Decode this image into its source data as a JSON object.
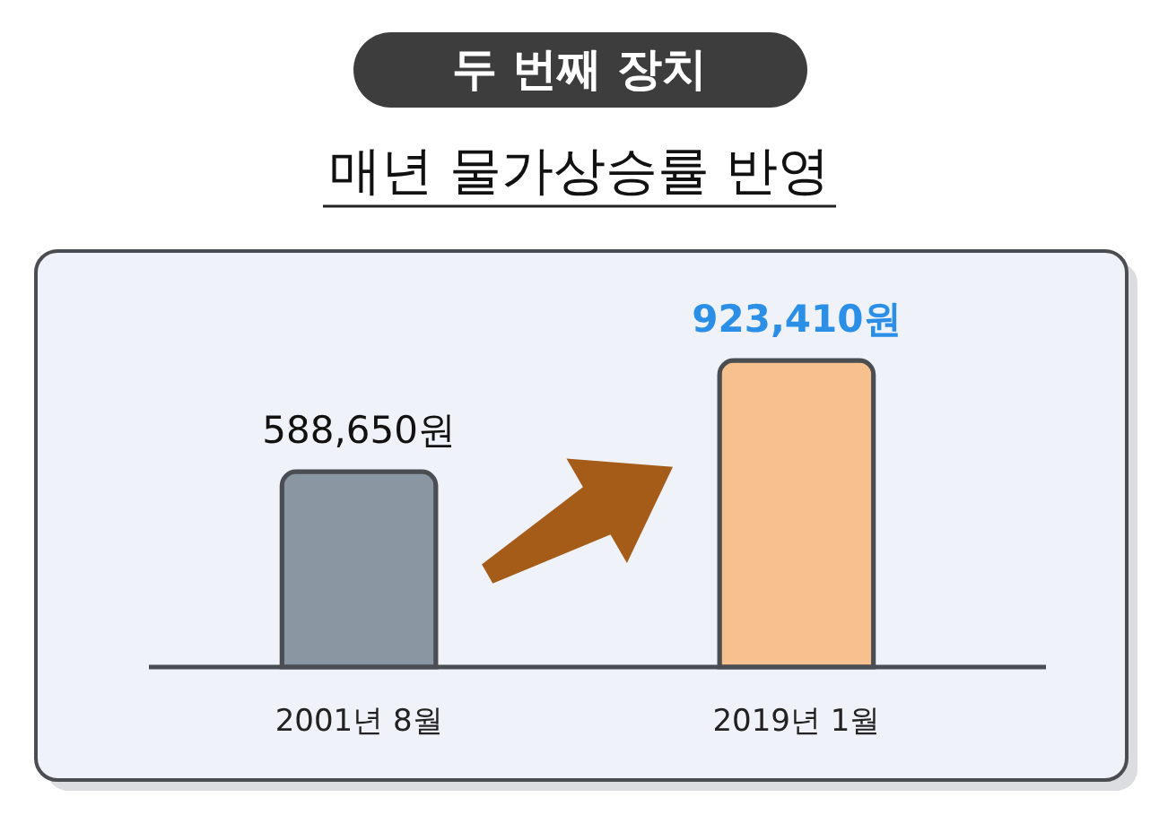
{
  "chart_data": {
    "type": "bar",
    "title": "두 번째 장치",
    "subtitle": "매년 물가상승률 반영",
    "categories": [
      "2001년 8월",
      "2019년 1월"
    ],
    "values": [
      588650,
      923410
    ],
    "colors": [
      "#8a96a2",
      "#f7c18f"
    ],
    "value_labels": [
      "588,650원",
      "923,410원"
    ]
  }
}
